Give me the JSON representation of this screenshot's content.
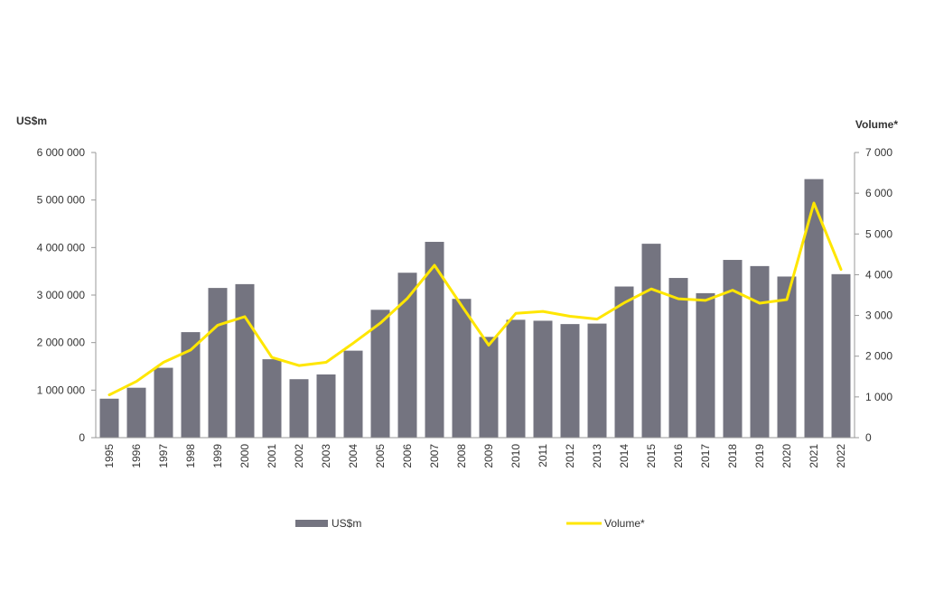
{
  "colors": {
    "bar": "#747480",
    "line": "#ffe600",
    "axis": "#999999",
    "text": "#333333"
  },
  "chart_data": {
    "type": "bar",
    "categories": [
      "1995",
      "1996",
      "1997",
      "1998",
      "1999",
      "2000",
      "2001",
      "2002",
      "2003",
      "2004",
      "2005",
      "2006",
      "2007",
      "2008",
      "2009",
      "2010",
      "2011",
      "2012",
      "2013",
      "2014",
      "2015",
      "2016",
      "2017",
      "2018",
      "2019",
      "2020",
      "2021",
      "2022"
    ],
    "series": [
      {
        "name": "US$m",
        "type": "bar",
        "axis": "left",
        "values": [
          820000,
          1050000,
          1470000,
          2220000,
          3150000,
          3230000,
          1650000,
          1230000,
          1330000,
          1830000,
          2690000,
          3470000,
          4120000,
          2920000,
          2120000,
          2480000,
          2460000,
          2390000,
          2400000,
          3180000,
          4080000,
          3360000,
          3040000,
          3740000,
          3610000,
          3390000,
          5440000,
          3440000
        ]
      },
      {
        "name": "Volume*",
        "type": "line",
        "axis": "right",
        "values": [
          1050,
          1380,
          1850,
          2150,
          2760,
          2970,
          1970,
          1770,
          1850,
          2320,
          2810,
          3420,
          4230,
          3240,
          2270,
          3050,
          3100,
          2980,
          2910,
          3310,
          3650,
          3410,
          3370,
          3620,
          3300,
          3390,
          5760,
          4130
        ]
      }
    ],
    "ylabel_left": "US$m",
    "ylabel_right": "Volume*",
    "ylim_left": [
      0,
      6000000
    ],
    "ylim_right": [
      0,
      7000
    ],
    "yticks_left": [
      "0",
      "1 000 000",
      "2 000 000",
      "3 000 000",
      "4 000 000",
      "5 000 000",
      "6 000 000"
    ],
    "yticks_right": [
      "0",
      "1 000",
      "2 000",
      "3 000",
      "4 000",
      "5 000",
      "6 000",
      "7 000"
    ],
    "grid": false,
    "legend_position": "bottom"
  }
}
